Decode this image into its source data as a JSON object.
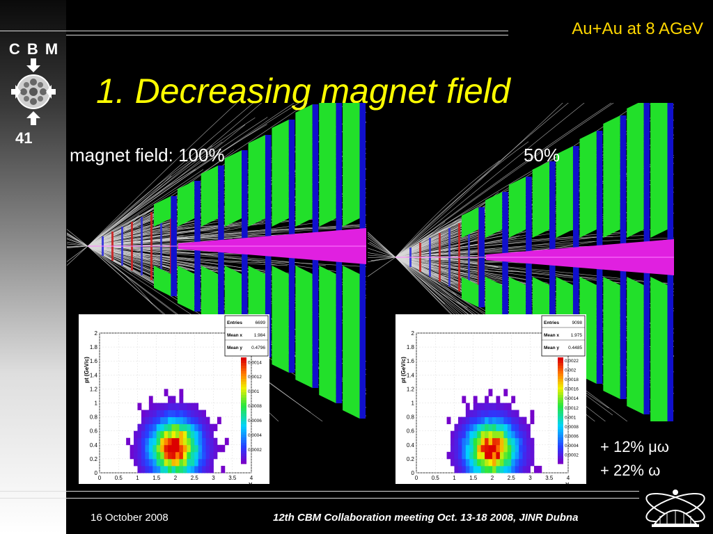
{
  "header": {
    "top_label": "Au+Au at 8 AGeV",
    "title": "1. Decreasing magnet field"
  },
  "sidebar": {
    "logo_text": "C B M",
    "logo_number": "41"
  },
  "panels": [
    {
      "label": "magnet field: 100%"
    },
    {
      "label": "50%"
    }
  ],
  "histograms": [
    {
      "entries_label": "Entries",
      "entries": "6699",
      "mean_x_label": "Mean x",
      "mean_x": "1.984",
      "mean_y_label": "Mean y",
      "mean_y": "0.4796",
      "ylabel": "pt (GeV/c)",
      "xlabel": "Y",
      "xticks": [
        "0",
        "0.5",
        "1",
        "1.5",
        "2",
        "2.5",
        "3",
        "3.5",
        "4"
      ],
      "yticks": [
        "0",
        "0.2",
        "0.4",
        "0.6",
        "0.8",
        "1",
        "1.2",
        "1.4",
        "1.6",
        "1.8",
        "2"
      ],
      "zticks": [
        "0.0002",
        "0.0004",
        "0.0006",
        "0.0008",
        "0.001",
        "0.0012",
        "0.0014"
      ]
    },
    {
      "entries_label": "Entries",
      "entries": "9098",
      "mean_x_label": "Mean x",
      "mean_x": "1.975",
      "mean_y_label": "Mean y",
      "mean_y": "0.4485",
      "ylabel": "pt (GeV/c)",
      "xlabel": "Y",
      "xticks": [
        "0",
        "0.5",
        "1",
        "1.5",
        "2",
        "2.5",
        "3",
        "3.5",
        "4"
      ],
      "yticks": [
        "0",
        "0.2",
        "0.4",
        "0.6",
        "0.8",
        "1",
        "1.2",
        "1.4",
        "1.6",
        "1.8",
        "2"
      ],
      "zticks": [
        "0.0002",
        "0.0004",
        "0.0006",
        "0.0008",
        "0.001",
        "0.0012",
        "0.0014",
        "0.0016",
        "0.0018",
        "0.002",
        "0.0022"
      ]
    }
  ],
  "notes": {
    "line1": "+ 12% μω",
    "line2": "+  22% ω"
  },
  "footer": {
    "date": "16 October 2008",
    "meeting": "12th CBM  Collaboration meeting Oct. 13-18 2008, JINR Dubna"
  },
  "colors": {
    "title": "#ffff00",
    "accent": "#ffd700",
    "station_green": "#22e02a",
    "station_blue": "#1010cc",
    "beam_magenta": "#e020e0"
  }
}
